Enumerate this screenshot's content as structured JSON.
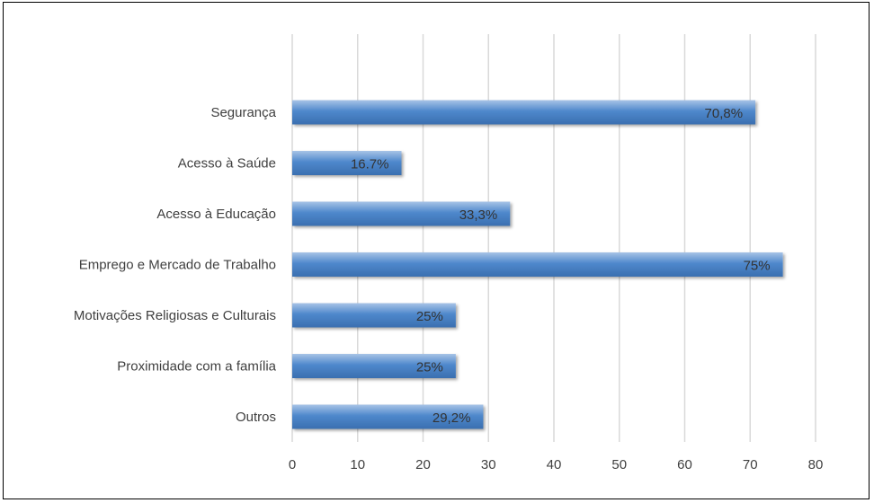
{
  "chart_data": {
    "type": "bar",
    "orientation": "horizontal",
    "categories": [
      "Segurança",
      "Acesso à Saúde",
      "Acesso à Educação",
      "Emprego e Mercado de Trabalho",
      "Motivações Religiosas e Culturais",
      "Proximidade com a família",
      "Outros"
    ],
    "values": [
      70.8,
      16.7,
      33.3,
      75,
      25,
      25,
      29.2
    ],
    "data_labels": [
      "70,8%",
      "16.7%",
      "33,3%",
      "75%",
      "25%",
      "25%",
      "29,2%"
    ],
    "x_ticks": [
      "0",
      "10",
      "20",
      "30",
      "40",
      "50",
      "60",
      "70",
      "80"
    ],
    "xlim": [
      0,
      80
    ],
    "grid": "vertical",
    "legend": "none",
    "title": "",
    "xlabel": "",
    "ylabel": "",
    "colors": {
      "bar_top": "#a7c3e6",
      "bar_mid": "#4f88cc",
      "bar_bottom": "#3a6fb0",
      "grid": "#d9d9d9",
      "text": "#3f3f3f"
    }
  }
}
